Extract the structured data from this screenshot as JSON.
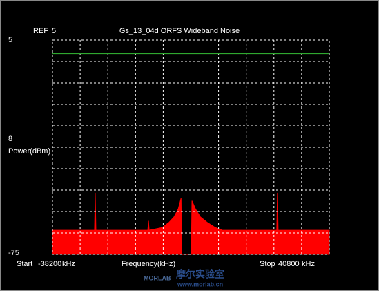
{
  "chart_data": {
    "type": "area",
    "title": "Gs_13_04d ORFS Wideband Noise",
    "ref_label": "REF",
    "y_label": "Power(dBm)",
    "x_label": "Frequency(kHz)",
    "start_label": "Start",
    "stop_label": "Stop",
    "x_unit": "kHz",
    "db_per_div": 8,
    "x_divisions": 10,
    "xlim": [
      -38200,
      40800
    ],
    "ylim": [
      -75,
      5
    ],
    "limit_line": 0,
    "limit_color": "#2fa82f",
    "grid": true,
    "series": [
      {
        "color": "#ff0000",
        "x": [
          -38200,
          -26200,
          -26000,
          -25800,
          -11000,
          -10800,
          -10600,
          -6900,
          -4900,
          -3500,
          -2300,
          -1500,
          -1300,
          1400,
          1600,
          2600,
          4000,
          5900,
          8300,
          10300,
          25800,
          26000,
          26200,
          40800
        ],
        "values": [
          -66,
          -66,
          -52,
          -66,
          -66,
          -62.5,
          -66,
          -65,
          -63,
          -61,
          -58,
          -54,
          -75,
          -75,
          -55,
          -58,
          -61,
          -63,
          -65,
          -66,
          -66,
          -52,
          -66,
          -66
        ]
      }
    ]
  },
  "watermark": {
    "brand": "MORLAB",
    "name": "摩尔实验室",
    "url": "www.morlab.cn"
  }
}
